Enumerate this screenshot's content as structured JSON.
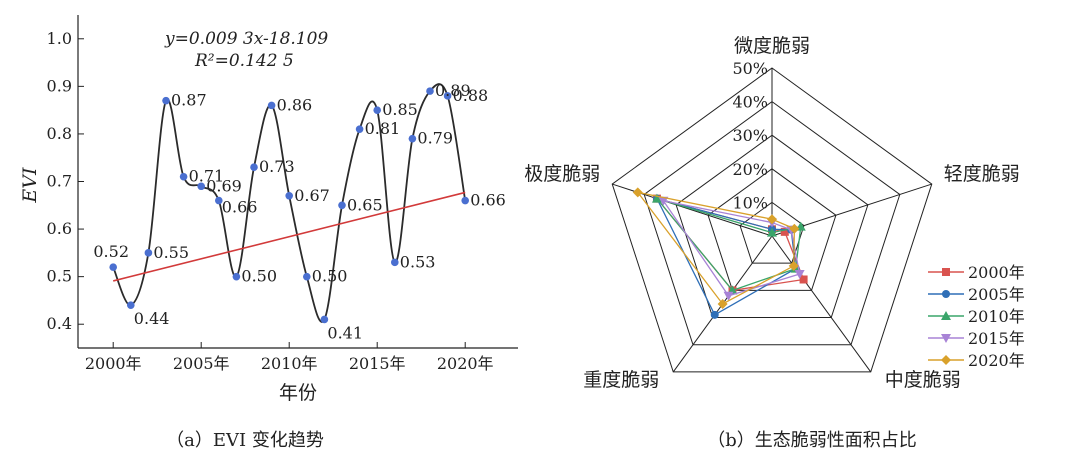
{
  "chart_data": [
    {
      "type": "line",
      "caption": "（a）EVI 变化趋势",
      "xlabel": "年份",
      "ylabel": "EVI",
      "xlim": [
        1998,
        2023
      ],
      "ylim": [
        0.35,
        1.05
      ],
      "yticks": [
        "1.0",
        "0.9",
        "0.8",
        "0.7",
        "0.6",
        "0.5",
        "0.4"
      ],
      "ytick_values": [
        1.0,
        0.9,
        0.8,
        0.7,
        0.6,
        0.5,
        0.4
      ],
      "xticks": [
        "2000年",
        "2005年",
        "2010年",
        "2015年",
        "2020年"
      ],
      "xtick_values": [
        2000,
        2005,
        2010,
        2015,
        2020
      ],
      "series": [
        {
          "x": [
            2000,
            2001,
            2002,
            2003,
            2004,
            2005,
            2006,
            2007,
            2008,
            2009,
            2010,
            2011,
            2012,
            2013,
            2014,
            2015,
            2016,
            2017,
            2018,
            2019,
            2020
          ],
          "y": [
            0.52,
            0.44,
            0.55,
            0.87,
            0.71,
            0.69,
            0.66,
            0.5,
            0.73,
            0.86,
            0.67,
            0.5,
            0.41,
            0.65,
            0.81,
            0.85,
            0.53,
            0.79,
            0.89,
            0.88,
            0.66
          ],
          "labels": [
            "0.52",
            "0.44",
            "0.55",
            "0.87",
            "0.71",
            "0.69",
            "0.66",
            "0.50",
            "0.73",
            "0.86",
            "0.67",
            "0.50",
            "0.41",
            "0.65",
            "0.81",
            "0.85",
            "0.53",
            "0.79",
            "0.89",
            "0.88",
            "0.66"
          ],
          "color": "#2b2b2b",
          "marker_color": "#4a6fd0"
        }
      ],
      "trend": {
        "slope": 0.0093,
        "intercept": -18.109,
        "color": "#d23a3a",
        "x_range": [
          2000,
          2020
        ]
      },
      "annotations": [
        "y=0.009 3x-18.109",
        "R²=0.142 5"
      ]
    },
    {
      "type": "radar",
      "caption": "（b）生态脆弱性面积占比",
      "axes": [
        "微度脆弱",
        "轻度脆弱",
        "中度脆弱",
        "重度脆弱",
        "极度脆弱"
      ],
      "rmax": 50,
      "rings": [
        "10%",
        "20%",
        "30%",
        "40%",
        "50%"
      ],
      "ring_values": [
        10,
        20,
        30,
        40,
        50
      ],
      "series": [
        {
          "name": "2000年",
          "values": [
            2,
            4,
            16,
            20,
            36
          ],
          "color": "#d9534f",
          "marker": "square"
        },
        {
          "name": "2005年",
          "values": [
            2,
            6,
            12,
            29,
            36
          ],
          "color": "#2f6fb7",
          "marker": "circle"
        },
        {
          "name": "2010年",
          "values": [
            1,
            9,
            12,
            20,
            36
          ],
          "color": "#3aa56a",
          "marker": "triangle-up"
        },
        {
          "name": "2015年",
          "values": [
            4,
            6,
            14,
            22,
            34
          ],
          "color": "#a883d6",
          "marker": "triangle-down"
        },
        {
          "name": "2020年",
          "values": [
            5,
            7,
            11,
            25,
            42
          ],
          "color": "#d9a12b",
          "marker": "diamond"
        }
      ]
    }
  ]
}
